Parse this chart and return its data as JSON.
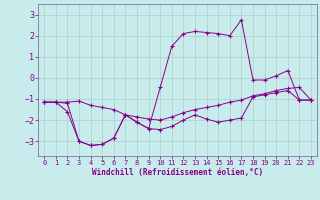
{
  "xlabel": "Windchill (Refroidissement éolien,°C)",
  "background_color": "#c8ecec",
  "grid_color": "#b0cccc",
  "line_color": "#880088",
  "x_values": [
    0,
    1,
    2,
    3,
    4,
    5,
    6,
    7,
    8,
    9,
    10,
    11,
    12,
    13,
    14,
    15,
    16,
    17,
    18,
    19,
    20,
    21,
    22,
    23
  ],
  "series1": [
    -1.15,
    -1.15,
    -1.2,
    -3.0,
    -3.2,
    -3.15,
    -2.85,
    -1.75,
    -2.1,
    -2.4,
    -2.45,
    -2.3,
    -2.0,
    -1.75,
    -1.95,
    -2.1,
    -2.0,
    -1.9,
    -0.9,
    -0.8,
    -0.7,
    -0.6,
    -1.05,
    -1.05
  ],
  "series2": [
    -1.15,
    -1.15,
    -1.6,
    -3.0,
    -3.2,
    -3.15,
    -2.85,
    -1.75,
    -2.1,
    -2.4,
    -0.45,
    1.5,
    2.1,
    2.2,
    2.15,
    2.1,
    2.0,
    2.75,
    -0.1,
    -0.1,
    0.1,
    0.35,
    -1.05,
    -1.05
  ],
  "series3": [
    -1.15,
    -1.15,
    -1.15,
    -1.1,
    -1.3,
    -1.4,
    -1.5,
    -1.75,
    -1.85,
    -1.95,
    -2.0,
    -1.85,
    -1.65,
    -1.5,
    -1.4,
    -1.3,
    -1.15,
    -1.05,
    -0.85,
    -0.75,
    -0.6,
    -0.5,
    -0.45,
    -1.05
  ],
  "ylim": [
    -3.7,
    3.5
  ],
  "xlim": [
    -0.5,
    23.5
  ],
  "yticks": [
    -3,
    -2,
    -1,
    0,
    1,
    2,
    3
  ],
  "xticks": [
    0,
    1,
    2,
    3,
    4,
    5,
    6,
    7,
    8,
    9,
    10,
    11,
    12,
    13,
    14,
    15,
    16,
    17,
    18,
    19,
    20,
    21,
    22,
    23
  ]
}
